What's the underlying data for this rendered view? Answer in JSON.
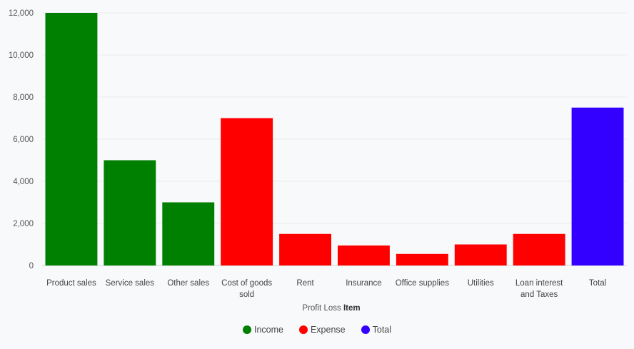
{
  "chart_data": {
    "type": "bar",
    "xlabel_prefix": "Profit Loss",
    "xlabel_bold": "Item",
    "ylim": [
      0,
      12000
    ],
    "yticks": [
      "0",
      "2,000",
      "4,000",
      "6,000",
      "8,000",
      "10,000",
      "12,000"
    ],
    "ytick_values": [
      0,
      2000,
      4000,
      6000,
      8000,
      10000,
      12000
    ],
    "categories": [
      [
        "Product sales"
      ],
      [
        "Service sales"
      ],
      [
        "Other sales"
      ],
      [
        "Cost of goods",
        "sold"
      ],
      [
        "Rent"
      ],
      [
        "Insurance"
      ],
      [
        "Office supplies"
      ],
      [
        "Utilities"
      ],
      [
        "Loan interest",
        "and Taxes"
      ],
      [
        "Total"
      ]
    ],
    "values": [
      12000,
      5000,
      3000,
      7000,
      1500,
      950,
      550,
      1000,
      1500,
      7500
    ],
    "groups": [
      "Income",
      "Income",
      "Income",
      "Expense",
      "Expense",
      "Expense",
      "Expense",
      "Expense",
      "Expense",
      "Total"
    ],
    "grid": true,
    "legend_position": "bottom-center",
    "legend": [
      {
        "name": "Income",
        "color": "#008000"
      },
      {
        "name": "Expense",
        "color": "#ff0000"
      },
      {
        "name": "Total",
        "color": "#3300ff"
      }
    ]
  }
}
